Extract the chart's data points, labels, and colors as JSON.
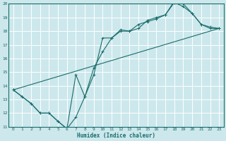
{
  "xlabel": "Humidex (Indice chaleur)",
  "bg_color": "#cce8ec",
  "grid_color": "#ffffff",
  "line_color": "#1a6b6b",
  "xlim": [
    -0.5,
    23.5
  ],
  "ylim": [
    11,
    20
  ],
  "xticks": [
    0,
    1,
    2,
    3,
    4,
    5,
    6,
    7,
    8,
    9,
    10,
    11,
    12,
    13,
    14,
    15,
    16,
    17,
    18,
    19,
    20,
    21,
    22,
    23
  ],
  "yticks": [
    11,
    12,
    13,
    14,
    15,
    16,
    17,
    18,
    19,
    20
  ],
  "line1_x": [
    0,
    1,
    2,
    3,
    4,
    5,
    6,
    7,
    8,
    9,
    10,
    11,
    12,
    13,
    14,
    15,
    16,
    17,
    18,
    19,
    20,
    21,
    22,
    23
  ],
  "line1_y": [
    13.7,
    13.2,
    12.7,
    12.0,
    12.0,
    11.4,
    10.85,
    11.7,
    13.2,
    14.8,
    17.5,
    17.5,
    18.1,
    18.0,
    18.2,
    18.8,
    19.0,
    19.2,
    20.2,
    20.0,
    19.3,
    18.5,
    18.2,
    18.2
  ],
  "line2_x": [
    0,
    1,
    2,
    3,
    4,
    5,
    6,
    7,
    8,
    9,
    10,
    11,
    12,
    13,
    14,
    15,
    16,
    17,
    18,
    19,
    20,
    21,
    22,
    23
  ],
  "line2_y": [
    13.7,
    13.2,
    12.7,
    12.0,
    12.0,
    11.4,
    10.85,
    14.8,
    13.2,
    15.3,
    16.5,
    17.5,
    18.0,
    18.0,
    18.5,
    18.7,
    18.9,
    19.2,
    20.1,
    19.8,
    19.3,
    18.5,
    18.3,
    18.2
  ],
  "line3_x": [
    0,
    23
  ],
  "line3_y": [
    13.7,
    18.2
  ]
}
